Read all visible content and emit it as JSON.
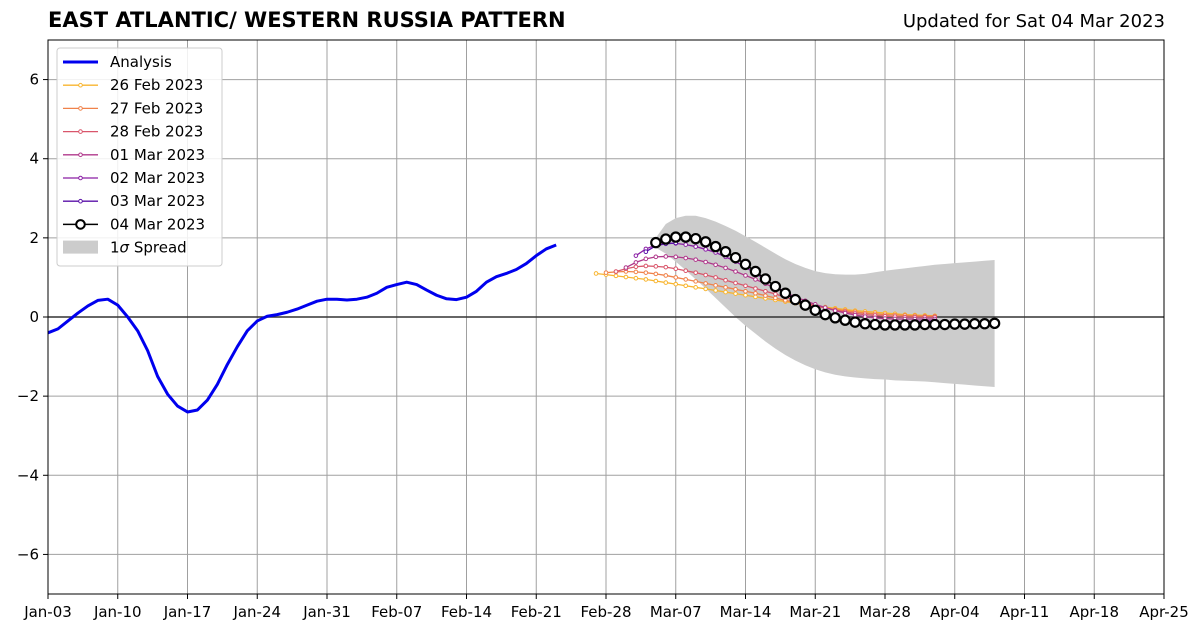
{
  "header": {
    "title": "EAST ATLANTIC/ WESTERN RUSSIA PATTERN",
    "updated": "Updated for Sat 04 Mar 2023"
  },
  "chart_data": {
    "type": "line",
    "title": "EAST ATLANTIC/ WESTERN RUSSIA PATTERN",
    "xlabel": "",
    "ylabel": "",
    "grid": true,
    "legend_position": "top-left",
    "x_ticks": [
      "Jan-03",
      "Jan-10",
      "Jan-17",
      "Jan-24",
      "Jan-31",
      "Feb-07",
      "Feb-14",
      "Feb-21",
      "Feb-28",
      "Mar-07",
      "Mar-14",
      "Mar-21",
      "Mar-28",
      "Apr-04",
      "Apr-11",
      "Apr-18",
      "Apr-25"
    ],
    "y_ticks": [
      "6",
      "4",
      "2",
      "0",
      "−2",
      "−4",
      "−6"
    ],
    "xlim_days": [
      0,
      112
    ],
    "ylim": [
      -7,
      7
    ],
    "y_tick_values": [
      6,
      4,
      2,
      0,
      -2,
      -4,
      -6
    ],
    "analysis": {
      "name": "Analysis",
      "color": "#0000ee",
      "start_date": "Jan-03",
      "values": [
        -0.4,
        -0.3,
        -0.1,
        0.1,
        0.28,
        0.42,
        0.45,
        0.3,
        0.0,
        -0.35,
        -0.85,
        -1.5,
        -1.95,
        -2.25,
        -2.4,
        -2.35,
        -2.1,
        -1.7,
        -1.2,
        -0.75,
        -0.35,
        -0.1,
        0.02,
        0.06,
        0.12,
        0.2,
        0.3,
        0.4,
        0.45,
        0.45,
        0.43,
        0.45,
        0.5,
        0.6,
        0.75,
        0.82,
        0.88,
        0.82,
        0.68,
        0.55,
        0.46,
        0.44,
        0.5,
        0.65,
        0.88,
        1.02,
        1.1,
        1.2,
        1.35,
        1.55,
        1.72,
        1.82
      ]
    },
    "forecasts": [
      {
        "name": "26 Feb 2023",
        "color": "#f8b52f",
        "start_date": "Feb-28",
        "start_offset_days": 55,
        "values": [
          1.1,
          1.07,
          1.04,
          1.01,
          0.98,
          0.95,
          0.91,
          0.87,
          0.83,
          0.79,
          0.75,
          0.71,
          0.67,
          0.63,
          0.59,
          0.55,
          0.51,
          0.47,
          0.43,
          0.39,
          0.35,
          0.31,
          0.28,
          0.25,
          0.22,
          0.19,
          0.16,
          0.14,
          0.12,
          0.1,
          0.08,
          0.06,
          0.05,
          0.04,
          0.03
        ]
      },
      {
        "name": "27 Feb 2023",
        "color": "#f0824a",
        "start_date": "Feb-28",
        "start_offset_days": 56,
        "values": [
          1.12,
          1.14,
          1.15,
          1.14,
          1.12,
          1.09,
          1.05,
          1.0,
          0.95,
          0.9,
          0.85,
          0.8,
          0.75,
          0.7,
          0.65,
          0.6,
          0.54,
          0.48,
          0.42,
          0.37,
          0.32,
          0.27,
          0.23,
          0.19,
          0.16,
          0.13,
          0.1,
          0.08,
          0.06,
          0.05,
          0.04,
          0.03,
          0.02,
          0.02
        ]
      },
      {
        "name": "28 Feb 2023",
        "color": "#d9566b",
        "start_date": "Feb-28",
        "start_offset_days": 57,
        "values": [
          1.15,
          1.22,
          1.27,
          1.29,
          1.28,
          1.26,
          1.22,
          1.17,
          1.12,
          1.06,
          1.0,
          0.93,
          0.86,
          0.79,
          0.72,
          0.65,
          0.58,
          0.5,
          0.43,
          0.36,
          0.29,
          0.23,
          0.17,
          0.13,
          0.09,
          0.06,
          0.04,
          0.02,
          0.01,
          0.0,
          0.0,
          0.0,
          0.0
        ]
      },
      {
        "name": "01 Mar 2023",
        "color": "#b0388b",
        "start_date": "Mar-01",
        "start_offset_days": 58,
        "values": [
          1.25,
          1.38,
          1.47,
          1.52,
          1.53,
          1.52,
          1.49,
          1.45,
          1.39,
          1.32,
          1.24,
          1.15,
          1.05,
          0.95,
          0.84,
          0.73,
          0.62,
          0.51,
          0.41,
          0.32,
          0.24,
          0.16,
          0.1,
          0.05,
          0.01,
          -0.02,
          -0.04,
          -0.05,
          -0.05,
          -0.05,
          -0.05,
          -0.05
        ]
      },
      {
        "name": "02 Mar 2023",
        "color": "#8a1fa5",
        "start_date": "Mar-02",
        "start_offset_days": 59,
        "values": [
          1.55,
          1.72,
          1.82,
          1.86,
          1.86,
          1.83,
          1.78,
          1.71,
          1.63,
          1.52,
          1.4,
          1.26,
          1.1,
          0.94,
          0.78,
          0.62,
          0.47,
          0.34,
          0.22,
          0.12,
          0.04,
          -0.03,
          -0.07,
          -0.1,
          -0.12,
          -0.12,
          -0.12,
          -0.12,
          -0.11,
          -0.1,
          -0.1
        ]
      },
      {
        "name": "03 Mar 2023",
        "color": "#5a11a8",
        "start_date": "Mar-03",
        "start_offset_days": 60,
        "values": [
          1.65,
          1.8,
          1.85,
          1.87
        ]
      },
      {
        "name": "04 Mar 2023",
        "color": "#000000",
        "start_date": "Mar-04",
        "start_offset_days": 61,
        "values": [
          1.88,
          1.97,
          2.02,
          2.02,
          1.98,
          1.9,
          1.78,
          1.65,
          1.5,
          1.33,
          1.15,
          0.96,
          0.77,
          0.6,
          0.44,
          0.3,
          0.17,
          0.06,
          -0.02,
          -0.08,
          -0.13,
          -0.17,
          -0.19,
          -0.2,
          -0.2,
          -0.2,
          -0.2,
          -0.19,
          -0.19,
          -0.19,
          -0.18,
          -0.18,
          -0.17,
          -0.17,
          -0.16
        ]
      }
    ],
    "spread": {
      "name": "1σ Spread",
      "label_prefix": "1",
      "label_symbol": "σ",
      "label_suffix": " Spread",
      "color": "#cccccc",
      "start_offset_days": 61,
      "upper": [
        2.0,
        2.35,
        2.5,
        2.56,
        2.56,
        2.5,
        2.41,
        2.3,
        2.18,
        2.04,
        1.9,
        1.75,
        1.6,
        1.46,
        1.34,
        1.24,
        1.16,
        1.11,
        1.08,
        1.07,
        1.07,
        1.09,
        1.13,
        1.17,
        1.2,
        1.23,
        1.26,
        1.29,
        1.32,
        1.34,
        1.36,
        1.38,
        1.4,
        1.42,
        1.44
      ],
      "lower": [
        1.75,
        1.6,
        1.4,
        1.18,
        0.95,
        0.72,
        0.48,
        0.24,
        0.0,
        -0.22,
        -0.42,
        -0.62,
        -0.8,
        -0.96,
        -1.1,
        -1.22,
        -1.32,
        -1.4,
        -1.46,
        -1.5,
        -1.53,
        -1.55,
        -1.57,
        -1.58,
        -1.6,
        -1.61,
        -1.62,
        -1.63,
        -1.65,
        -1.67,
        -1.69,
        -1.71,
        -1.73,
        -1.75,
        -1.77
      ]
    }
  }
}
